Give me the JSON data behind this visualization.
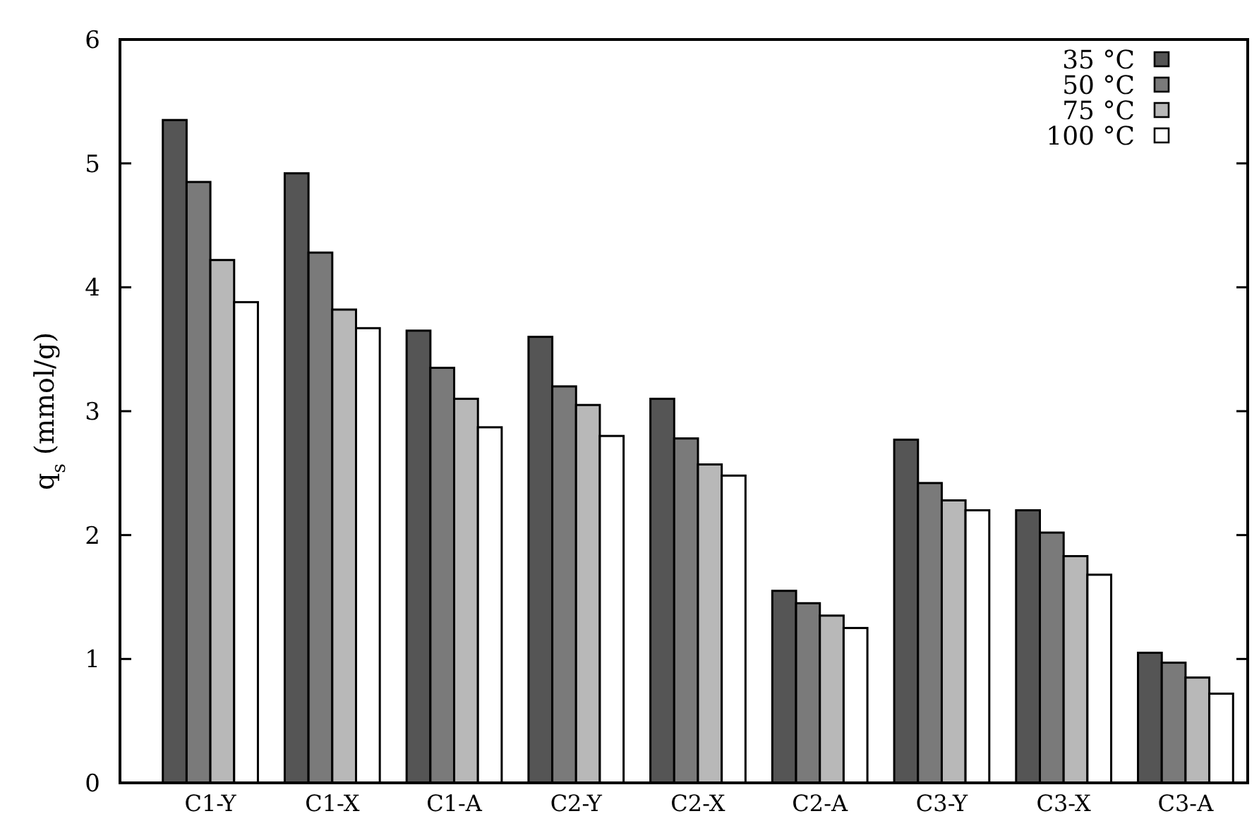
{
  "chart_data": {
    "type": "bar",
    "ylabel": "q$_{s}$ (mmol/g)",
    "categories": [
      "C1-Y",
      "C1-X",
      "C1-A",
      "C2-Y",
      "C2-X",
      "C2-A",
      "C3-Y",
      "C3-X",
      "C3-A"
    ],
    "series": [
      {
        "name": "35 °C",
        "color": "#555555",
        "values": [
          5.35,
          4.92,
          3.65,
          3.6,
          3.1,
          1.55,
          2.77,
          2.2,
          1.05
        ]
      },
      {
        "name": "50 °C",
        "color": "#7a7a7a",
        "values": [
          4.85,
          4.28,
          3.35,
          3.2,
          2.78,
          1.45,
          2.42,
          2.02,
          0.97
        ]
      },
      {
        "name": "75 °C",
        "color": "#b8b8b8",
        "values": [
          4.22,
          3.82,
          3.1,
          3.05,
          2.57,
          1.35,
          2.28,
          1.83,
          0.85
        ]
      },
      {
        "name": "100 °C",
        "color": "#ffffff",
        "values": [
          3.88,
          3.67,
          2.87,
          2.8,
          2.48,
          1.25,
          2.2,
          1.68,
          0.72
        ]
      }
    ],
    "ylim": [
      0,
      6
    ],
    "yticks": [
      0,
      1,
      2,
      3,
      4,
      5,
      6
    ],
    "legend": "top right"
  }
}
